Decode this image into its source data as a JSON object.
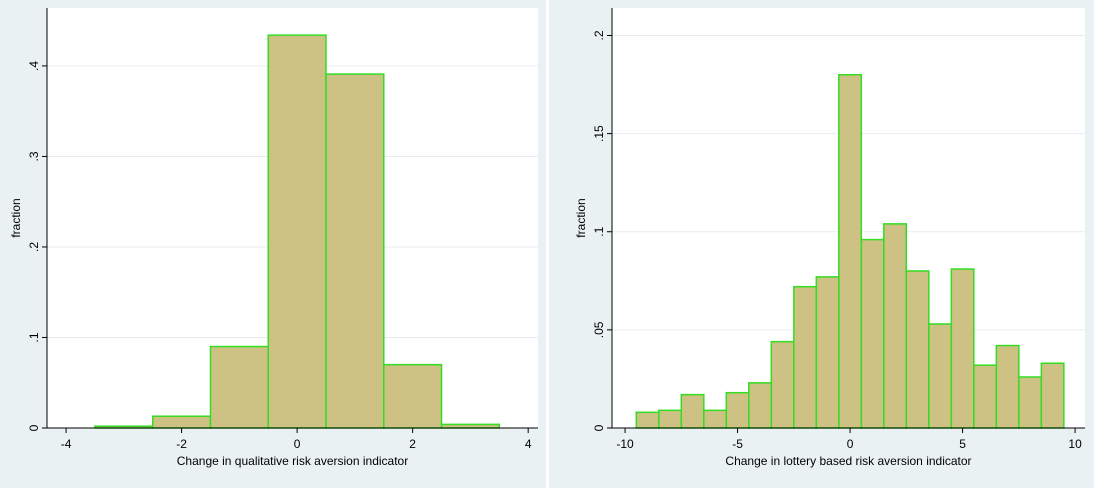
{
  "chart_data": [
    {
      "type": "histogram",
      "bins": [
        -3.5,
        -2.5,
        -1.5,
        -0.5,
        0.5,
        1.5,
        2.5,
        3.5
      ],
      "values": [
        0.002,
        0.013,
        0.09,
        0.434,
        0.391,
        0.07,
        0.004
      ],
      "xlim": [
        -4.33,
        4.17
      ],
      "ylim": [
        0,
        0.464
      ],
      "xticks": [
        -4,
        -2,
        0,
        2,
        4
      ],
      "yticks": [
        0,
        {
          "value": 0.1,
          "label": ".1"
        },
        {
          "value": 0.2,
          "label": ".2"
        },
        {
          "value": 0.3,
          "label": ".3"
        },
        {
          "value": 0.4,
          "label": ".4"
        }
      ],
      "xlabel": "Change in qualitative risk aversion indicator",
      "ylabel": "fraction",
      "color": "#cdc284",
      "edgecolor": "#33dd22",
      "grid": true
    },
    {
      "type": "histogram",
      "bins": [
        -9.5,
        -8.5,
        -7.5,
        -6.5,
        -5.5,
        -4.5,
        -3.5,
        -2.5,
        -1.5,
        -0.5,
        0.5,
        1.5,
        2.5,
        3.5,
        4.5,
        5.5,
        6.5,
        7.5,
        8.5,
        9.5
      ],
      "values": [
        0.008,
        0.009,
        0.017,
        0.009,
        0.018,
        0.023,
        0.044,
        0.072,
        0.077,
        0.18,
        0.096,
        0.104,
        0.08,
        0.053,
        0.081,
        0.032,
        0.042,
        0.026,
        0.033
      ],
      "xlim": [
        -10.58,
        10.44
      ],
      "ylim": [
        0,
        0.214
      ],
      "xticks": [
        -10,
        -5,
        0,
        5,
        10
      ],
      "yticks": [
        0,
        {
          "value": 0.05,
          "label": ".05"
        },
        {
          "value": 0.1,
          "label": ".1"
        },
        {
          "value": 0.15,
          "label": ".15"
        },
        {
          "value": 0.2,
          "label": ".2"
        }
      ],
      "xlabel": "Change in lottery based risk aversion indicator",
      "ylabel": "fraction",
      "color": "#cdc284",
      "edgecolor": "#33dd22",
      "grid": true
    }
  ]
}
